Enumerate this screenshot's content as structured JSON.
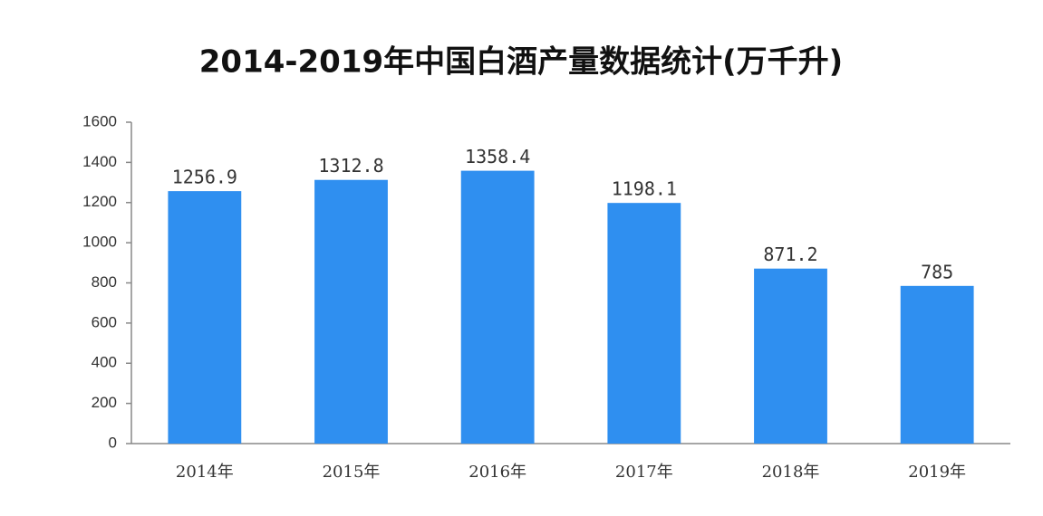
{
  "chart_data": {
    "type": "bar",
    "title": "2014-2019年中国白酒产量数据统计(万千升)",
    "categories": [
      "2014年",
      "2015年",
      "2016年",
      "2017年",
      "2018年",
      "2019年"
    ],
    "values": [
      1256.9,
      1312.8,
      1358.4,
      1198.1,
      871.2,
      785
    ],
    "color": "#2f8ff0",
    "ylim": [
      0,
      1600
    ],
    "yticks": [
      0,
      200,
      400,
      600,
      800,
      1000,
      1200,
      1400,
      1600
    ],
    "grid": false
  }
}
